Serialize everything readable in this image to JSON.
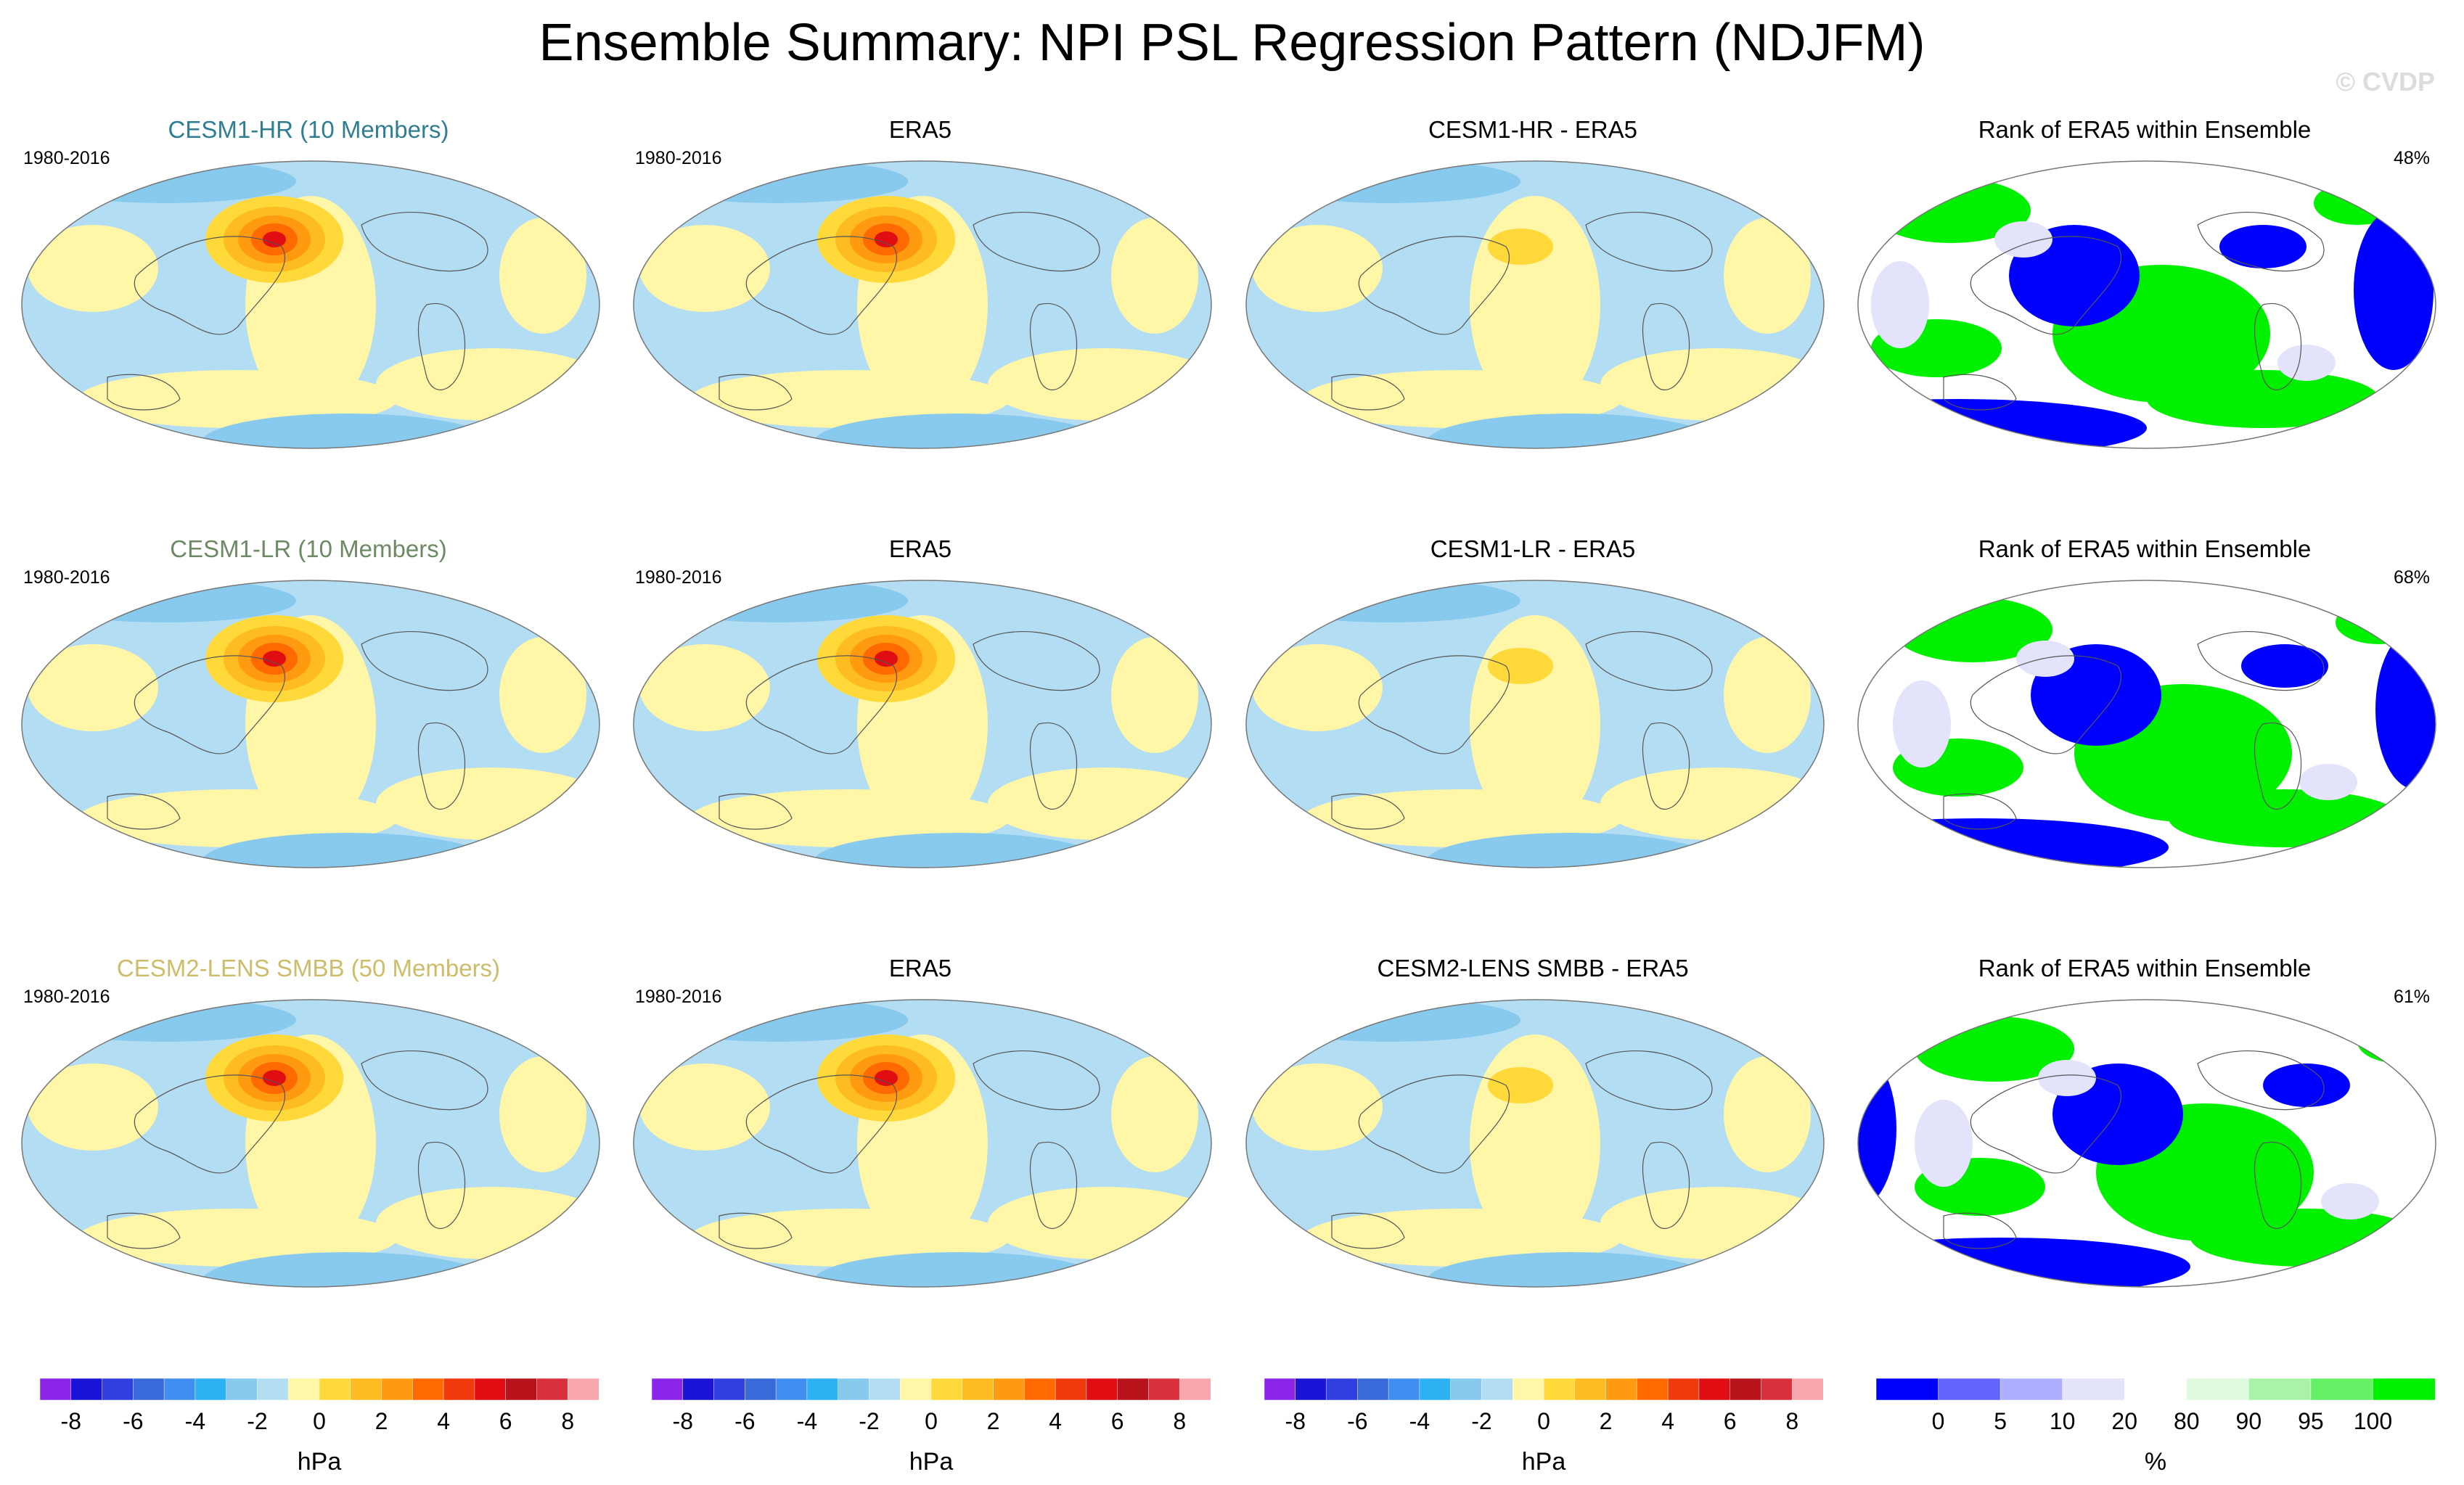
{
  "title": "Ensemble Summary: NPI PSL Regression Pattern (NDJFM)",
  "watermark": "© CVDP",
  "rows": [
    {
      "model": "CESM1-HR (10 Members)",
      "model_color": "#2f7e92",
      "obs": "ERA5",
      "diff": "CESM1-HR - ERA5",
      "rank": "Rank of ERA5 within Ensemble",
      "rank_pct": "48%",
      "years": "1980-2016"
    },
    {
      "model": "CESM1-LR (10 Members)",
      "model_color": "#6d8a64",
      "obs": "ERA5",
      "diff": "CESM1-LR - ERA5",
      "rank": "Rank of ERA5 within Ensemble",
      "rank_pct": "68%",
      "years": "1980-2016"
    },
    {
      "model": "CESM2-LENS SMBB (50 Members)",
      "model_color": "#cdbc6a",
      "obs": "ERA5",
      "diff": "CESM2-LENS SMBB - ERA5",
      "rank": "Rank of ERA5 within Ensemble",
      "rank_pct": "61%",
      "years": "1980-2016"
    }
  ],
  "psl_colorbar": {
    "unit": "hPa",
    "labels": [
      "-8",
      "-6",
      "-4",
      "-2",
      "0",
      "2",
      "4",
      "6",
      "8"
    ],
    "colors": [
      "#8b26e8",
      "#1a14d6",
      "#3040e0",
      "#3a69d9",
      "#3f8ef0",
      "#2cb1f2",
      "#88c9ee",
      "#b3ddf2",
      "#fff6a8",
      "#ffd93a",
      "#ffbb22",
      "#ff9a11",
      "#ff6a00",
      "#f03a0b",
      "#e00d12",
      "#b8121a",
      "#d8303c",
      "#f8a8ac"
    ]
  },
  "rank_colorbar": {
    "unit": "%",
    "labels": [
      "0",
      "5",
      "10",
      "20",
      "80",
      "90",
      "95",
      "100"
    ],
    "colors": [
      "#0000ff",
      "#6464ff",
      "#afafff",
      "#e3e3fb",
      "#ffffff",
      "#e0fae0",
      "#a8f3a8",
      "#66f066",
      "#00f000"
    ]
  }
}
